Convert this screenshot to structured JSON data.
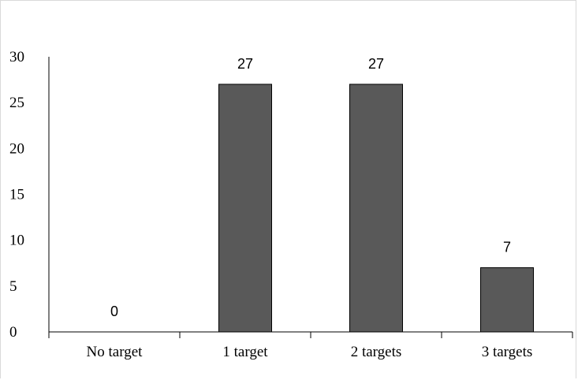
{
  "chart_data": {
    "type": "bar",
    "categories": [
      "No target",
      "1 target",
      "2 targets",
      "3 targets"
    ],
    "values": [
      0,
      27,
      27,
      7
    ],
    "data_labels": [
      "0",
      "27",
      "27",
      "7"
    ],
    "title": "",
    "xlabel": "",
    "ylabel": "",
    "ylim": [
      0,
      30
    ],
    "yticks": [
      0,
      5,
      10,
      15,
      20,
      25,
      30
    ],
    "grid": false,
    "bar_color": "#595959",
    "bar_edge_color": "#000000"
  }
}
